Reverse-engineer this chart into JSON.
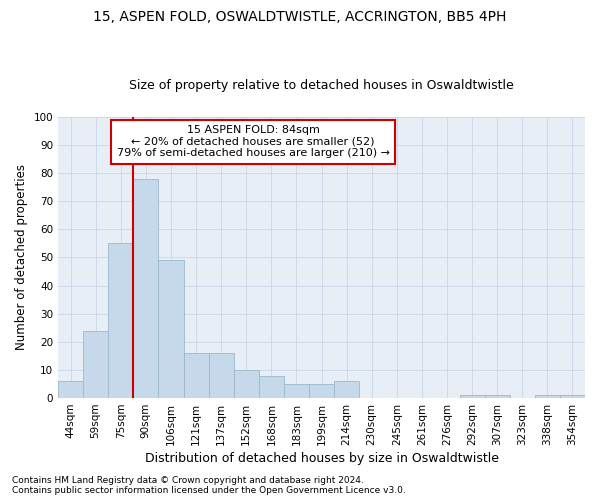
{
  "title1": "15, ASPEN FOLD, OSWALDTWISTLE, ACCRINGTON, BB5 4PH",
  "title2": "Size of property relative to detached houses in Oswaldtwistle",
  "xlabel": "Distribution of detached houses by size in Oswaldtwistle",
  "ylabel": "Number of detached properties",
  "categories": [
    "44sqm",
    "59sqm",
    "75sqm",
    "90sqm",
    "106sqm",
    "121sqm",
    "137sqm",
    "152sqm",
    "168sqm",
    "183sqm",
    "199sqm",
    "214sqm",
    "230sqm",
    "245sqm",
    "261sqm",
    "276sqm",
    "292sqm",
    "307sqm",
    "323sqm",
    "338sqm",
    "354sqm"
  ],
  "values": [
    6,
    24,
    55,
    78,
    49,
    16,
    16,
    10,
    8,
    5,
    5,
    6,
    0,
    0,
    0,
    0,
    1,
    1,
    0,
    1,
    1
  ],
  "bar_color": "#c6d9ea",
  "bar_edge_color": "#9ab8cc",
  "vline_color": "#cc0000",
  "vline_x_index": 3,
  "annotation_text": "15 ASPEN FOLD: 84sqm\n← 20% of detached houses are smaller (52)\n79% of semi-detached houses are larger (210) →",
  "annotation_box_color": "#ffffff",
  "annotation_box_edge": "#cc0000",
  "ylim": [
    0,
    100
  ],
  "yticks": [
    0,
    10,
    20,
    30,
    40,
    50,
    60,
    70,
    80,
    90,
    100
  ],
  "grid_color": "#cdd8e8",
  "bg_color": "#e8eef5",
  "footnote1": "Contains HM Land Registry data © Crown copyright and database right 2024.",
  "footnote2": "Contains public sector information licensed under the Open Government Licence v3.0.",
  "title1_fontsize": 10,
  "title2_fontsize": 9,
  "xlabel_fontsize": 9,
  "ylabel_fontsize": 8.5,
  "tick_fontsize": 7.5,
  "annot_fontsize": 8,
  "footnote_fontsize": 6.5
}
